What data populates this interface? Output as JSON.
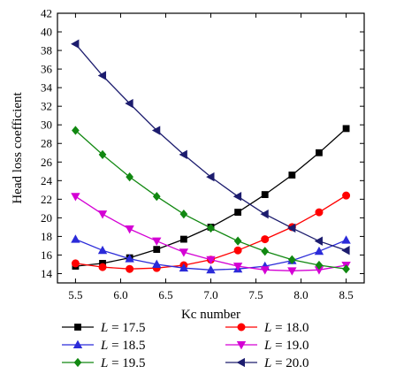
{
  "chart_data": {
    "type": "line",
    "xlabel": "Kc number",
    "ylabel": "Head loss coefficient",
    "xlim": [
      5.3,
      8.7
    ],
    "ylim": [
      13,
      42
    ],
    "xticks": [
      5.5,
      6.0,
      6.5,
      7.0,
      7.5,
      8.0,
      8.5
    ],
    "xtick_labels": [
      "5.5",
      "6.0",
      "6.5",
      "7.0",
      "7.5",
      "8.0",
      "8.5"
    ],
    "yticks": [
      14,
      16,
      18,
      20,
      22,
      24,
      26,
      28,
      30,
      32,
      34,
      36,
      38,
      40,
      42
    ],
    "ytick_labels": [
      "14",
      "16",
      "18",
      "20",
      "22",
      "24",
      "26",
      "28",
      "30",
      "32",
      "34",
      "36",
      "38",
      "40",
      "42"
    ],
    "grid": false,
    "legend_position": "bottom",
    "x": [
      5.5,
      5.8,
      6.1,
      6.4,
      6.7,
      7.0,
      7.3,
      7.6,
      7.9,
      8.2,
      8.5
    ],
    "series": [
      {
        "name": "17.5",
        "var": "L",
        "marker": "square",
        "color": "#000000",
        "values": [
          14.8,
          15.1,
          15.7,
          16.6,
          17.7,
          19.0,
          20.6,
          22.5,
          24.6,
          27.0,
          29.6
        ]
      },
      {
        "name": "18.0",
        "var": "L",
        "marker": "circle",
        "color": "#ff0000",
        "values": [
          15.1,
          14.7,
          14.5,
          14.6,
          14.9,
          15.5,
          16.5,
          17.7,
          19.0,
          20.6,
          22.4
        ]
      },
      {
        "name": "18.5",
        "var": "L",
        "marker": "triangle-up",
        "color": "#2b2bd9",
        "values": [
          17.7,
          16.5,
          15.6,
          15.0,
          14.6,
          14.4,
          14.5,
          14.8,
          15.4,
          16.4,
          17.6
        ]
      },
      {
        "name": "19.0",
        "var": "L",
        "marker": "triangle-down",
        "color": "#d400d4",
        "values": [
          22.3,
          20.4,
          18.8,
          17.5,
          16.3,
          15.5,
          14.8,
          14.4,
          14.3,
          14.4,
          14.9
        ]
      },
      {
        "name": "19.5",
        "var": "L",
        "marker": "diamond",
        "color": "#118811",
        "values": [
          29.4,
          26.8,
          24.4,
          22.3,
          20.4,
          18.9,
          17.5,
          16.4,
          15.5,
          14.9,
          14.5
        ]
      },
      {
        "name": "20.0",
        "var": "L",
        "marker": "triangle-left",
        "color": "#1c1c6e",
        "values": [
          38.7,
          35.3,
          32.3,
          29.4,
          26.8,
          24.4,
          22.3,
          20.4,
          18.9,
          17.5,
          16.5
        ]
      }
    ]
  }
}
